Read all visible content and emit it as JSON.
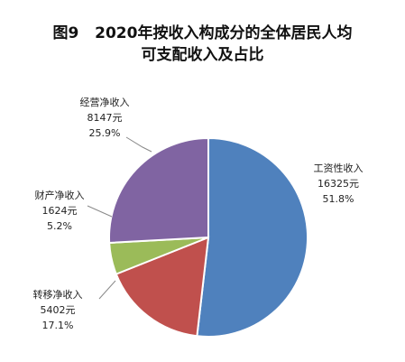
{
  "chart_data": {
    "type": "pie",
    "title_line1": "图9   2020年按收入构成分的全体居民人均",
    "title_line2": "可支配收入及占比",
    "slices": [
      {
        "name": "工资性收入",
        "value": 16325,
        "value_label": "16325元",
        "percent": 51.8,
        "percent_label": "51.8%",
        "color": "#4f81bd"
      },
      {
        "name": "转移净收入",
        "value": 5402,
        "value_label": "5402元",
        "percent": 17.1,
        "percent_label": "17.1%",
        "color": "#c0504d"
      },
      {
        "name": "财产净收入",
        "value": 1624,
        "value_label": "1624元",
        "percent": 5.2,
        "percent_label": "5.2%",
        "color": "#9bbb59"
      },
      {
        "name": "经营净收入",
        "value": 8147,
        "value_label": "8147元",
        "percent": 25.9,
        "percent_label": "25.9%",
        "color": "#8064a2"
      }
    ],
    "legend": "none"
  }
}
